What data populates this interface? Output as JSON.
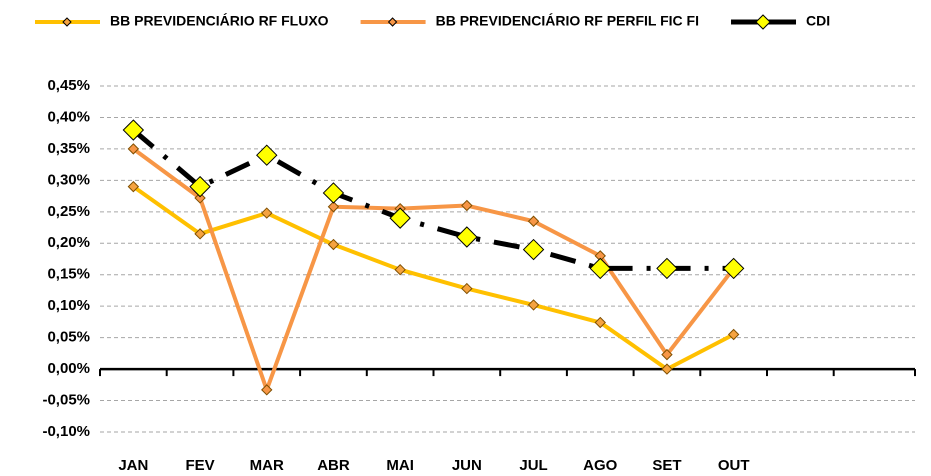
{
  "chart_data": {
    "type": "line",
    "categories": [
      "JAN",
      "FEV",
      "MAR",
      "ABR",
      "MAI",
      "JUN",
      "JUL",
      "AGO",
      "SET",
      "OUT",
      null,
      null
    ],
    "series": [
      {
        "name": "BB PREVIDENCIÁRIO RF FLUXO",
        "color": "#ffc000",
        "marker_color": "#f5a340",
        "values": [
          0.29,
          0.215,
          0.248,
          0.198,
          0.158,
          0.128,
          0.102,
          0.074,
          0.0,
          0.055,
          null,
          null
        ]
      },
      {
        "name": "BB PREVIDENCIÁRIO RF PERFIL FIC FI",
        "color": "#f79646",
        "marker_color": "#f79646",
        "values": [
          0.35,
          0.272,
          -0.033,
          0.258,
          0.255,
          0.26,
          0.235,
          0.18,
          0.023,
          0.16,
          null,
          null
        ]
      },
      {
        "name": "CDI",
        "color": "#000000",
        "marker_color": "#ffff00",
        "dashed": true,
        "values": [
          0.38,
          0.29,
          0.34,
          0.28,
          0.24,
          0.21,
          0.19,
          0.16,
          0.16,
          0.16,
          null,
          null
        ]
      }
    ],
    "ylim": [
      -0.1,
      0.45
    ],
    "yticks": [
      {
        "value": -0.1,
        "label": "-0,10%"
      },
      {
        "value": -0.05,
        "label": "-0,05%"
      },
      {
        "value": 0,
        "label": "0,00%"
      },
      {
        "value": 0.05,
        "label": "0,05%"
      },
      {
        "value": 0.1,
        "label": "0,10%"
      },
      {
        "value": 0.15,
        "label": "0,15%"
      },
      {
        "value": 0.2,
        "label": "0,20%"
      },
      {
        "value": 0.25,
        "label": "0,25%"
      },
      {
        "value": 0.3,
        "label": "0,30%"
      },
      {
        "value": 0.35,
        "label": "0,35%"
      },
      {
        "value": 0.4,
        "label": "0,40%"
      },
      {
        "value": 0.45,
        "label": "0,45%"
      }
    ],
    "grid": true,
    "legend": "top"
  }
}
